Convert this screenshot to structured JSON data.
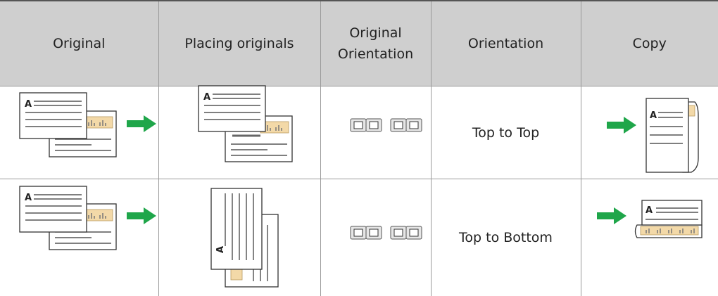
{
  "table": {
    "header": [
      "Original",
      "Placing originals",
      "Original Orientation",
      "Orientation",
      "Copy"
    ],
    "rows": [
      [
        "Top to Top"
      ],
      [
        "Top to Bottom"
      ]
    ]
  }
}
